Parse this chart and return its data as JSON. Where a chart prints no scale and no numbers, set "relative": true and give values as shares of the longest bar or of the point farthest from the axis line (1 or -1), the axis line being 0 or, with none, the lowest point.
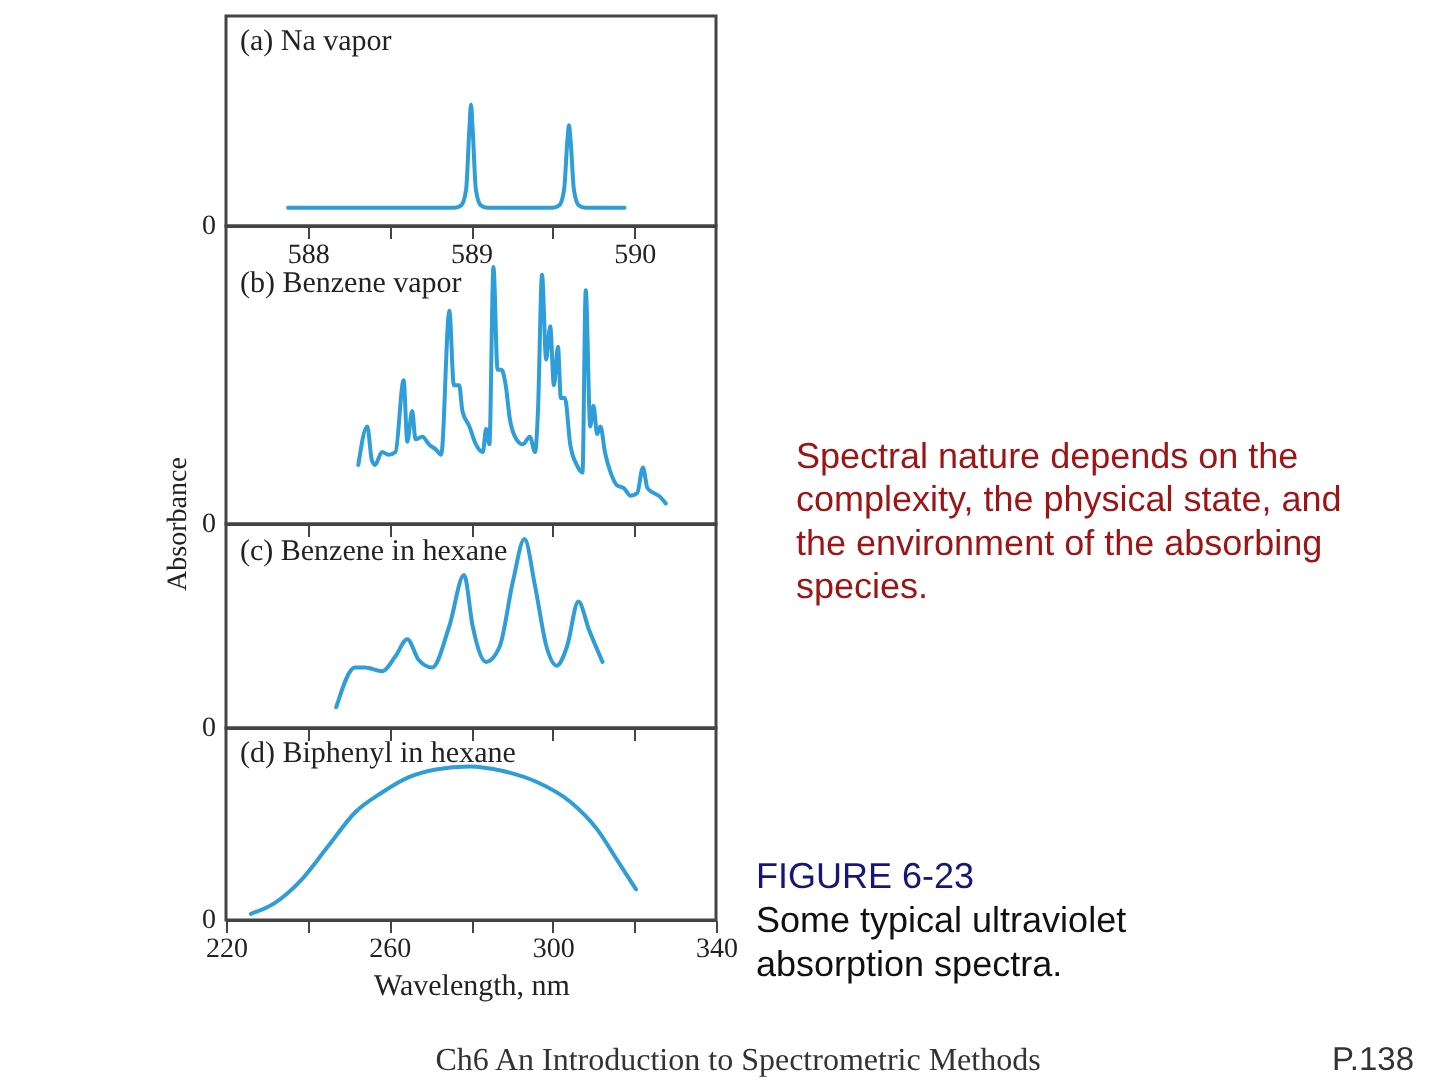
{
  "chart_data": [
    {
      "type": "line",
      "title": "(a) Na vapor",
      "relative": true,
      "color": "#2f9ed8",
      "x": [
        587.88,
        588.9,
        588.94,
        588.97,
        588.99,
        589.0,
        589.01,
        589.03,
        589.06,
        589.1,
        589.5,
        589.54,
        589.57,
        589.59,
        589.6,
        589.61,
        589.63,
        589.66,
        589.7,
        589.94
      ],
      "values": [
        0.15,
        0.15,
        0.17,
        0.3,
        0.8,
        1.0,
        0.8,
        0.3,
        0.17,
        0.15,
        0.15,
        0.17,
        0.3,
        0.7,
        0.83,
        0.7,
        0.3,
        0.17,
        0.15,
        0.15
      ],
      "xlim": [
        587.5,
        590.5
      ],
      "xticks": [
        588,
        {
          "value": 588.5,
          "label": null
        },
        589,
        {
          "value": 589.5,
          "label": null
        },
        590
      ],
      "annotations": [
        "0"
      ]
    },
    {
      "type": "line",
      "title": "(b) Benzene vapor",
      "ylabel": "Absorbance",
      "relative": true,
      "color": "#2f9ed8",
      "x": [
        252.4,
        254.6,
        255.7,
        256.5,
        258.2,
        259.8,
        261.5,
        263.5,
        264.4,
        265.6,
        266.4,
        268.1,
        269.7,
        271.4,
        272.7,
        274.7,
        275.8,
        277.1,
        277.9,
        279.6,
        281.2,
        282.9,
        283.7,
        284.5,
        285.5,
        286.5,
        287.5,
        288.5,
        289.5,
        291.1,
        292.7,
        294.4,
        295.7,
        296.4,
        297.4,
        298.4,
        299.4,
        300.3,
        301.3,
        302.0,
        303.0,
        304.3,
        305.9,
        307.3,
        308.1,
        309.2,
        310.0,
        310.9,
        311.7,
        312.8,
        314.2,
        315.8,
        317.4,
        319.1,
        320.7,
        322.1,
        323.2,
        324.8,
        326.0,
        327.7
      ],
      "values": [
        0.23,
        0.38,
        0.25,
        0.23,
        0.28,
        0.27,
        0.28,
        0.56,
        0.32,
        0.44,
        0.33,
        0.34,
        0.31,
        0.29,
        0.27,
        0.83,
        0.54,
        0.54,
        0.44,
        0.38,
        0.31,
        0.28,
        0.37,
        0.31,
        1.0,
        0.6,
        0.6,
        0.54,
        0.41,
        0.33,
        0.31,
        0.34,
        0.28,
        0.44,
        0.97,
        0.64,
        0.77,
        0.54,
        0.69,
        0.49,
        0.49,
        0.31,
        0.23,
        0.2,
        0.91,
        0.38,
        0.46,
        0.35,
        0.38,
        0.28,
        0.2,
        0.15,
        0.14,
        0.11,
        0.12,
        0.22,
        0.14,
        0.12,
        0.11,
        0.08
      ],
      "xlim": [
        220,
        340
      ],
      "xticks": [
        240,
        260,
        280,
        300,
        320
      ],
      "tick_labels": false,
      "annotations": [
        "0",
        "Spectral nature depends on the complexity, the physical state, and the environment of the absorbing species."
      ]
    },
    {
      "type": "line",
      "title": "(c) Benzene in hexane",
      "relative": true,
      "color": "#2f9ed8",
      "x": [
        247.0,
        251.6,
        254.1,
        258.2,
        261.5,
        264.4,
        267.2,
        270.5,
        274.7,
        278.3,
        280.4,
        283.7,
        287.0,
        290.3,
        293.1,
        295.7,
        298.5,
        301.0,
        303.5,
        306.3,
        308.9,
        312.2
      ],
      "values": [
        0.11,
        0.32,
        0.32,
        0.3,
        0.38,
        0.47,
        0.36,
        0.32,
        0.54,
        0.81,
        0.54,
        0.35,
        0.43,
        0.78,
        1.0,
        0.75,
        0.43,
        0.33,
        0.43,
        0.67,
        0.52,
        0.35
      ],
      "xlim": [
        220,
        340
      ],
      "xticks": [
        240,
        260,
        280,
        300,
        320
      ],
      "tick_labels": false,
      "annotations": [
        "0"
      ]
    },
    {
      "type": "line",
      "title": "(d) Biphenyl in hexane",
      "xlabel": "Wavelength, nm",
      "relative": true,
      "color": "#2f9ed8",
      "x": [
        226.1,
        231.9,
        238.4,
        245.0,
        251.6,
        258.2,
        264.8,
        271.4,
        279.6,
        287.8,
        296.0,
        304.3,
        310.9,
        315.8,
        320.4
      ],
      "values": [
        0.04,
        0.11,
        0.26,
        0.48,
        0.7,
        0.83,
        0.93,
        0.98,
        1.0,
        0.97,
        0.9,
        0.77,
        0.59,
        0.39,
        0.2
      ],
      "xlim": [
        220,
        340
      ],
      "xticks": [
        220,
        {
          "value": 240,
          "label": null
        },
        260,
        {
          "value": 280,
          "label": null
        },
        300,
        {
          "value": 320,
          "label": null
        },
        340
      ],
      "annotations": [
        "0",
        "FIGURE 6-23",
        "Some typical ultraviolet absorption spectra.",
        "Ch6 An Introduction to Spectrometric Methods",
        "P.138"
      ]
    }
  ]
}
